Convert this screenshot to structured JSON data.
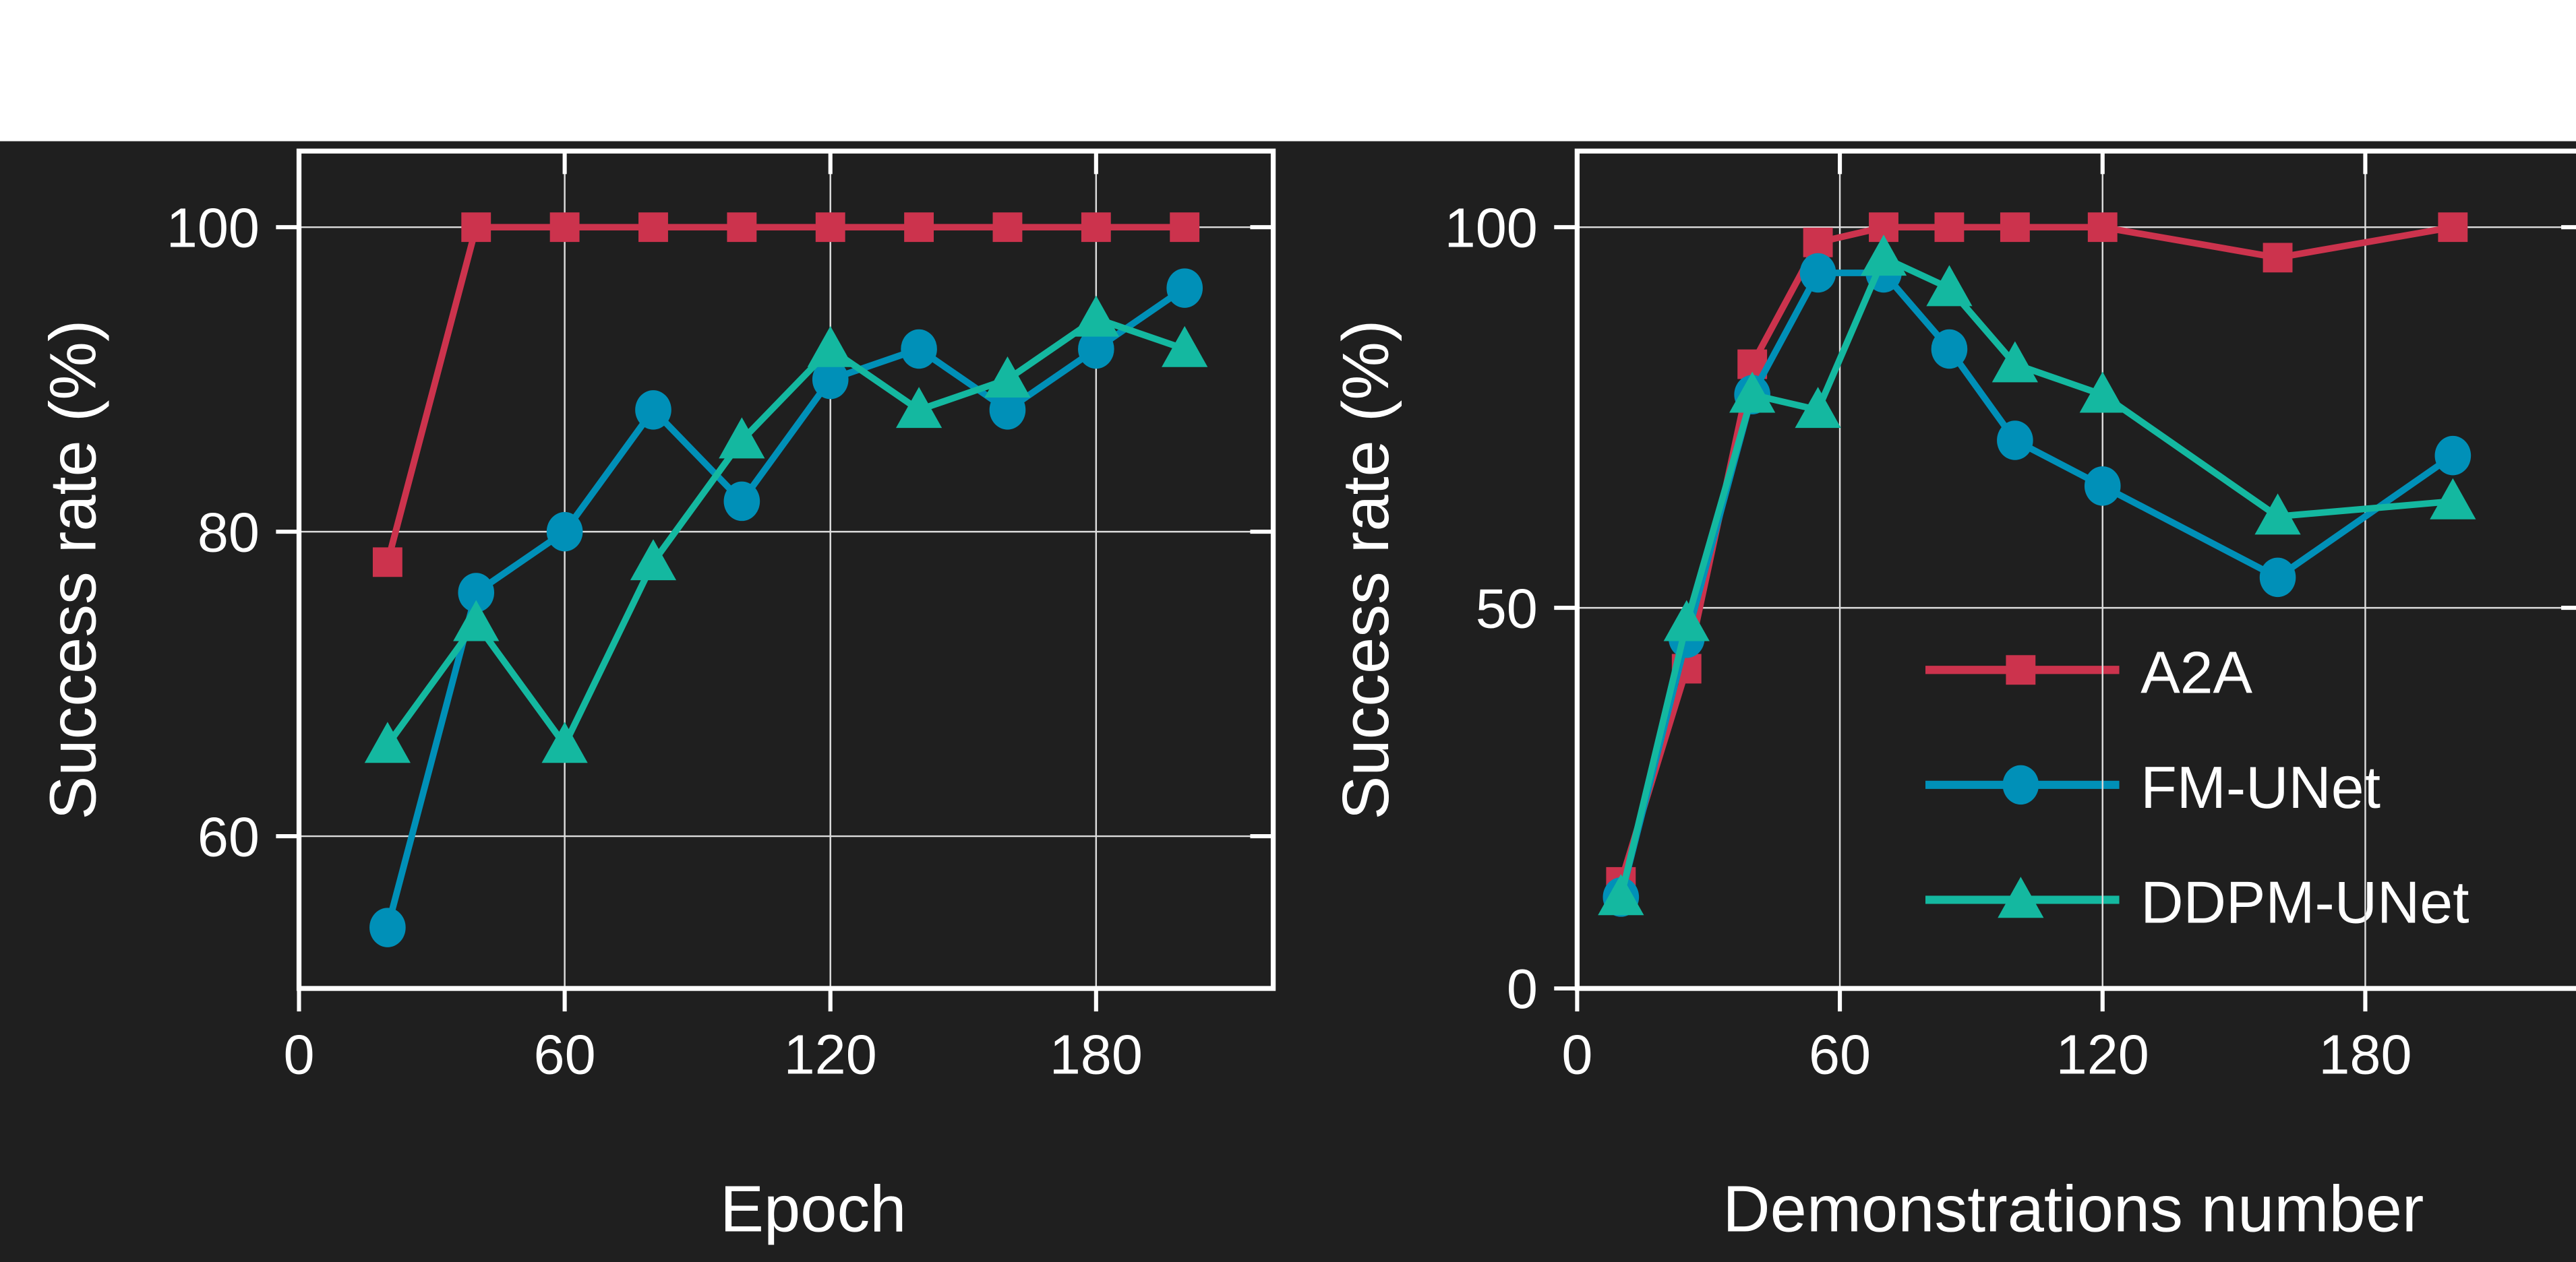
{
  "chart_data": [
    {
      "type": "line",
      "xlabel": "Epoch",
      "ylabel": "Success rate (%)",
      "xlim": [
        0,
        220
      ],
      "ylim": [
        50,
        105
      ],
      "xticks": [
        0,
        60,
        120,
        180
      ],
      "yticks": [
        60,
        80,
        100
      ],
      "grid": true,
      "x": [
        20,
        40,
        60,
        80,
        100,
        120,
        140,
        160,
        180,
        200
      ],
      "series": [
        {
          "name": "A2A",
          "color": "#cc334d",
          "marker": "square",
          "values": [
            78,
            100,
            100,
            100,
            100,
            100,
            100,
            100,
            100,
            100
          ]
        },
        {
          "name": "FM-UNet",
          "color": "#0090b8",
          "marker": "circle",
          "values": [
            54,
            76,
            80,
            88,
            82,
            90,
            92,
            88,
            92,
            96
          ]
        },
        {
          "name": "DDPM-UNet",
          "color": "#14b8a0",
          "marker": "triangle",
          "values": [
            66,
            74,
            66,
            78,
            86,
            92,
            88,
            90,
            94,
            92
          ]
        }
      ]
    },
    {
      "type": "line",
      "xlabel": "Demonstrations number",
      "ylabel": "Success rate (%)",
      "xlim": [
        0,
        230
      ],
      "ylim": [
        0,
        110
      ],
      "xticks": [
        0,
        60,
        120,
        180
      ],
      "yticks": [
        0,
        50,
        100
      ],
      "grid": true,
      "legend": "lower-right",
      "x": [
        10,
        25,
        40,
        55,
        70,
        85,
        100,
        120,
        160,
        200
      ],
      "series": [
        {
          "name": "A2A",
          "color": "#cc334d",
          "marker": "square",
          "values": [
            14,
            42,
            82,
            98,
            100,
            100,
            100,
            100,
            96,
            100
          ]
        },
        {
          "name": "FM-UNet",
          "color": "#0090b8",
          "marker": "circle",
          "values": [
            12,
            46,
            78,
            94,
            94,
            84,
            72,
            66,
            54,
            70
          ]
        },
        {
          "name": "DDPM-UNet",
          "color": "#14b8a0",
          "marker": "triangle",
          "values": [
            12,
            48,
            78,
            76,
            96,
            92,
            82,
            78,
            62,
            64
          ]
        }
      ]
    }
  ],
  "colors": {
    "background": "#1f1f1f",
    "top_band": "#ffffff",
    "axes": "#ffffff"
  }
}
